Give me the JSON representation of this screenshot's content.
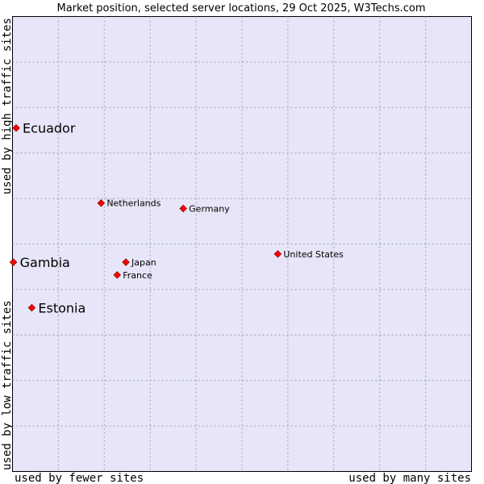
{
  "chart_data": {
    "type": "scatter",
    "title": "Market position, selected server locations, 29 Oct 2025, W3Techs.com",
    "xlabel_left": "used by fewer sites",
    "xlabel_right": "used by many sites",
    "ylabel_bottom": "used by low traffic sites",
    "ylabel_top": "used by high traffic sites",
    "xlim": [
      0,
      10
    ],
    "ylim": [
      0,
      10
    ],
    "grid": true,
    "colors": {
      "plot_bg": "#e6e6f8",
      "grid": "#a0a0b0",
      "point": "#ff0000",
      "point_stroke": "#990000"
    },
    "points": [
      {
        "name": "Ecuador",
        "x": 0.08,
        "y": 7.55,
        "highlight": true
      },
      {
        "name": "Gambia",
        "x": 0.02,
        "y": 4.6,
        "highlight": true
      },
      {
        "name": "Estonia",
        "x": 0.42,
        "y": 3.6,
        "highlight": true
      },
      {
        "name": "Netherlands",
        "x": 1.93,
        "y": 5.9,
        "highlight": false
      },
      {
        "name": "Germany",
        "x": 3.72,
        "y": 5.78,
        "highlight": false
      },
      {
        "name": "United States",
        "x": 5.78,
        "y": 4.78,
        "highlight": false
      },
      {
        "name": "Japan",
        "x": 2.47,
        "y": 4.6,
        "highlight": false
      },
      {
        "name": "France",
        "x": 2.28,
        "y": 4.32,
        "highlight": false
      }
    ]
  }
}
